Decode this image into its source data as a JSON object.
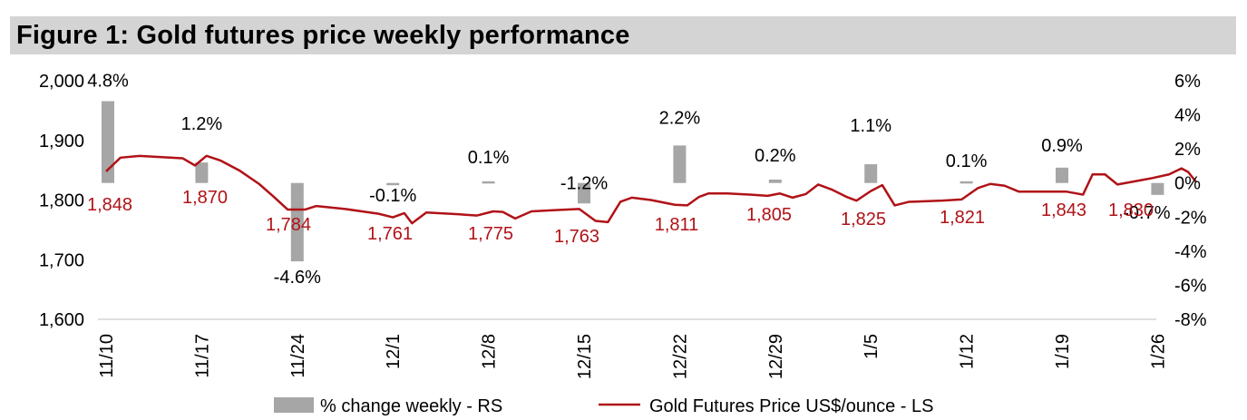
{
  "title": "Figure 1: Gold futures price weekly performance",
  "colors": {
    "bar": "#a6a6a6",
    "line": "#b01217",
    "price_label": "#b01217",
    "title_bg": "#d4d4d4"
  },
  "legend": {
    "bar_label": "% change weekly - RS",
    "line_label": "Gold Futures Price US$/ounce - LS"
  },
  "chart_data": {
    "type": "bar+line",
    "title": "Figure 1: Gold futures price weekly performance",
    "x_tick_labels": [
      "11/10",
      "11/17",
      "11/24",
      "12/1",
      "12/8",
      "12/15",
      "12/22",
      "12/29",
      "1/5",
      "1/12",
      "1/19",
      "1/26"
    ],
    "left_axis": {
      "label": "Gold Futures Price US$/ounce",
      "range": [
        1600,
        2000
      ],
      "tick_labels": [
        "1,600",
        "1,700",
        "1,800",
        "1,900",
        "2,000"
      ]
    },
    "right_axis": {
      "label": "% change weekly",
      "range": [
        -8,
        6
      ],
      "tick_labels": [
        "-8%",
        "-6%",
        "-4%",
        "-2%",
        "0%",
        "2%",
        "4%",
        "6%"
      ]
    },
    "bars": {
      "name": "% change weekly - RS",
      "values": [
        4.8,
        1.2,
        -4.6,
        -0.1,
        0.1,
        -1.2,
        2.2,
        0.2,
        1.1,
        0.1,
        0.9,
        -0.7
      ],
      "labels": [
        "4.8%",
        "1.2%",
        "-4.6%",
        "-0.1%",
        "0.1%",
        "-1.2%",
        "2.2%",
        "0.2%",
        "1.1%",
        "0.1%",
        "0.9%",
        "-0.7%"
      ]
    },
    "weekly_close_labels": [
      "1,848",
      "1,870",
      "1,784",
      "1,761",
      "1,775",
      "1,763",
      "1,811",
      "1,805",
      "1,825",
      "1,821",
      "1,843",
      "1,830"
    ],
    "line": {
      "name": "Gold Futures Price US$/ounce - LS",
      "points": [
        [
          0.0,
          1848
        ],
        [
          0.15,
          1871
        ],
        [
          0.35,
          1874
        ],
        [
          0.8,
          1870
        ],
        [
          0.93,
          1858
        ],
        [
          1.05,
          1874
        ],
        [
          1.2,
          1866
        ],
        [
          1.4,
          1849
        ],
        [
          1.6,
          1827
        ],
        [
          1.75,
          1806
        ],
        [
          1.9,
          1784
        ],
        [
          2.08,
          1784
        ],
        [
          2.2,
          1790
        ],
        [
          2.5,
          1785
        ],
        [
          2.85,
          1777
        ],
        [
          3.0,
          1771
        ],
        [
          3.12,
          1778
        ],
        [
          3.2,
          1761
        ],
        [
          3.35,
          1779
        ],
        [
          3.7,
          1776
        ],
        [
          3.88,
          1774
        ],
        [
          4.05,
          1781
        ],
        [
          4.15,
          1780
        ],
        [
          4.28,
          1769
        ],
        [
          4.45,
          1781
        ],
        [
          4.7,
          1783
        ],
        [
          4.95,
          1785
        ],
        [
          5.12,
          1765
        ],
        [
          5.25,
          1763
        ],
        [
          5.38,
          1797
        ],
        [
          5.5,
          1804
        ],
        [
          5.7,
          1800
        ],
        [
          5.95,
          1792
        ],
        [
          6.08,
          1791
        ],
        [
          6.2,
          1805
        ],
        [
          6.3,
          1811
        ],
        [
          6.5,
          1811
        ],
        [
          6.75,
          1809
        ],
        [
          6.92,
          1807
        ],
        [
          7.05,
          1811
        ],
        [
          7.18,
          1804
        ],
        [
          7.32,
          1810
        ],
        [
          7.45,
          1826
        ],
        [
          7.6,
          1817
        ],
        [
          7.75,
          1805
        ],
        [
          7.85,
          1799
        ],
        [
          8.0,
          1815
        ],
        [
          8.12,
          1825
        ],
        [
          8.25,
          1791
        ],
        [
          8.4,
          1797
        ],
        [
          8.75,
          1799
        ],
        [
          8.95,
          1801
        ],
        [
          9.12,
          1820
        ],
        [
          9.25,
          1827
        ],
        [
          9.4,
          1824
        ],
        [
          9.55,
          1814
        ],
        [
          9.8,
          1814
        ],
        [
          10.05,
          1814
        ],
        [
          10.22,
          1809
        ],
        [
          10.32,
          1843
        ],
        [
          10.45,
          1843
        ],
        [
          10.58,
          1826
        ],
        [
          10.75,
          1831
        ],
        [
          10.95,
          1837
        ],
        [
          11.12,
          1843
        ],
        [
          11.25,
          1853
        ],
        [
          11.32,
          1847
        ],
        [
          11.4,
          1831
        ]
      ]
    }
  }
}
